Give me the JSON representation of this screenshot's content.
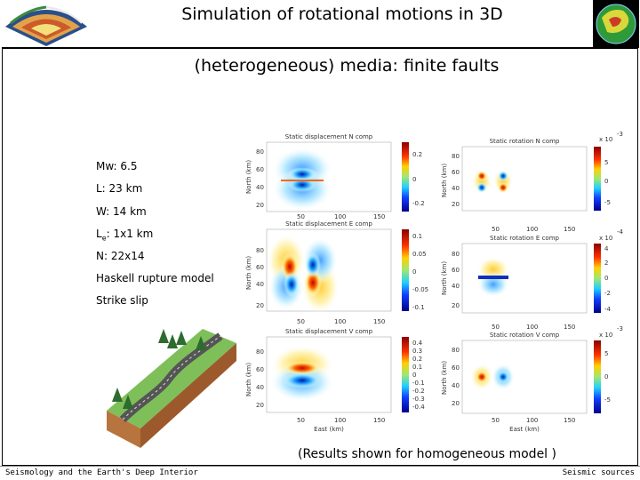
{
  "header": {
    "title_line1": "Simulation of rotational motions in 3D",
    "title_line2": "(heterogeneous) media: finite faults"
  },
  "params": {
    "mw": "Mw: 6.5",
    "length": "L: 23 km",
    "width": "W: 14 km",
    "le_prefix": "L",
    "le_sub": "e",
    "le_suffix": ": 1x1 km",
    "n": "N: 22x14",
    "model": "Haskell rupture model",
    "mechanism": "Strike slip"
  },
  "panels": {
    "disp_n": "Static displacement N comp",
    "disp_e": "Static displacement E comp",
    "disp_v": "Static displacement V comp",
    "rot_n": "Static rotation N comp",
    "rot_e": "Static rotation E comp",
    "rot_v": "Static rotation V comp",
    "axis_north": "North (km)",
    "axis_east": "East (km)",
    "x_ticks": [
      "50",
      "100",
      "150"
    ],
    "y_ticks": [
      "80",
      "60",
      "40",
      "20"
    ],
    "disp_n_cb": [
      "0.2",
      "0",
      "-0.2"
    ],
    "disp_e_cb": [
      "0.1",
      "0.05",
      "0",
      "-0.05",
      "-0.1"
    ],
    "disp_v_cb": [
      "0.4",
      "0.3",
      "0.2",
      "0.1",
      "0",
      "-0.1",
      "-0.2",
      "-0.3",
      "-0.4"
    ],
    "rot_n_cb": [
      "5",
      "0",
      "-5"
    ],
    "rot_e_cb": [
      "4",
      "2",
      "0",
      "-2",
      "-4"
    ],
    "rot_v_cb": [
      "5",
      "0",
      "-5"
    ],
    "scale_n": "x 10",
    "exp_n": "-3",
    "exp_e": "-4",
    "exp_v": "-3"
  },
  "caption": "(Results shown for homogeneous model )",
  "footer": {
    "left": "Seismology and the Earth's Deep Interior",
    "right": "Seismic sources"
  }
}
